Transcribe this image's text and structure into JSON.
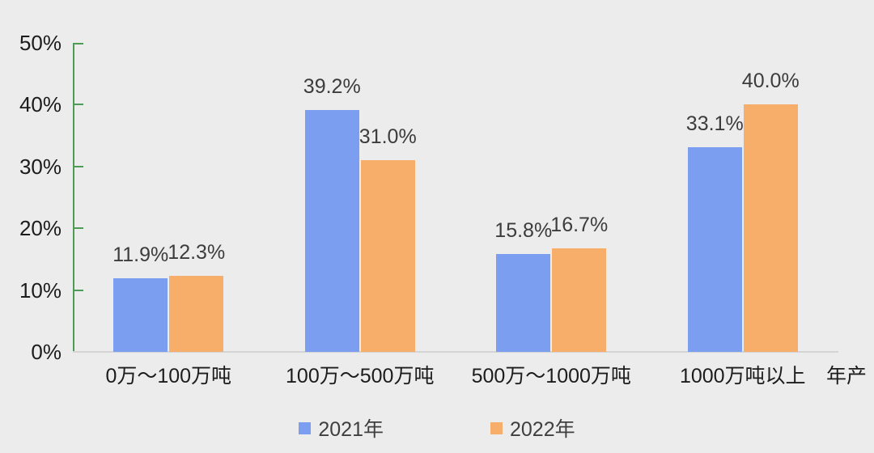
{
  "chart_data": {
    "type": "bar",
    "title": "",
    "categories": [
      "0万～100万吨",
      "100万～500万吨",
      "500万～1000万吨",
      "1000万吨以上"
    ],
    "series": [
      {
        "name": "2021年",
        "color": "#7C9EF0",
        "values": [
          11.9,
          39.2,
          15.8,
          33.1
        ],
        "labels": [
          "11.9%",
          "39.2%",
          "15.8%",
          "33.1%"
        ]
      },
      {
        "name": "2022年",
        "color": "#F8AE6B",
        "values": [
          12.3,
          31.0,
          16.7,
          40.0
        ],
        "labels": [
          "12.3%",
          "31.0%",
          "16.7%",
          "40.0%"
        ]
      }
    ],
    "x_axis_title": "年产",
    "y_axis": {
      "min": 0,
      "max": 50,
      "step": 10,
      "tick_labels": [
        "0%",
        "10%",
        "20%",
        "30%",
        "40%",
        "50%"
      ]
    },
    "grid": false,
    "legend_position": "bottom"
  },
  "colors": {
    "background": "#ECECEC",
    "y_axis_line": "#4E9B58",
    "baseline": "#D4D4D4",
    "axis_text": "#1C1C1C",
    "data_label_text": "#3C3C3C",
    "legend_text": "#3F3F3F"
  }
}
